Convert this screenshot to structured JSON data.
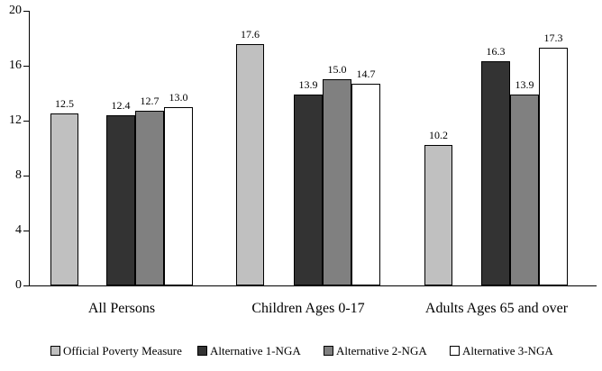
{
  "chart_data": {
    "type": "bar",
    "categories": [
      "All Persons",
      "Children Ages 0-17",
      "Adults Ages 65 and over"
    ],
    "series": [
      {
        "name": "Official Poverty Measure",
        "color": "#c0c0c0",
        "values": [
          12.5,
          17.6,
          10.2
        ]
      },
      {
        "name": "Alternative 1-NGA",
        "color": "#333333",
        "values": [
          12.4,
          13.9,
          16.3
        ]
      },
      {
        "name": "Alternative 2-NGA",
        "color": "#808080",
        "values": [
          12.7,
          15.0,
          13.9
        ]
      },
      {
        "name": "Alternative 3-NGA",
        "color": "#ffffff",
        "values": [
          13.0,
          14.7,
          17.3
        ]
      }
    ],
    "title": "",
    "xlabel": "",
    "ylabel": "",
    "ylim": [
      0,
      20
    ],
    "yticks": [
      0,
      4,
      8,
      12,
      16,
      20
    ],
    "grid": false,
    "value_labels": true,
    "value_label_format": "one-decimal",
    "legend_position": "bottom",
    "bar_border_color": "#000000",
    "axis_color": "#000000",
    "background_color": "#ffffff"
  }
}
